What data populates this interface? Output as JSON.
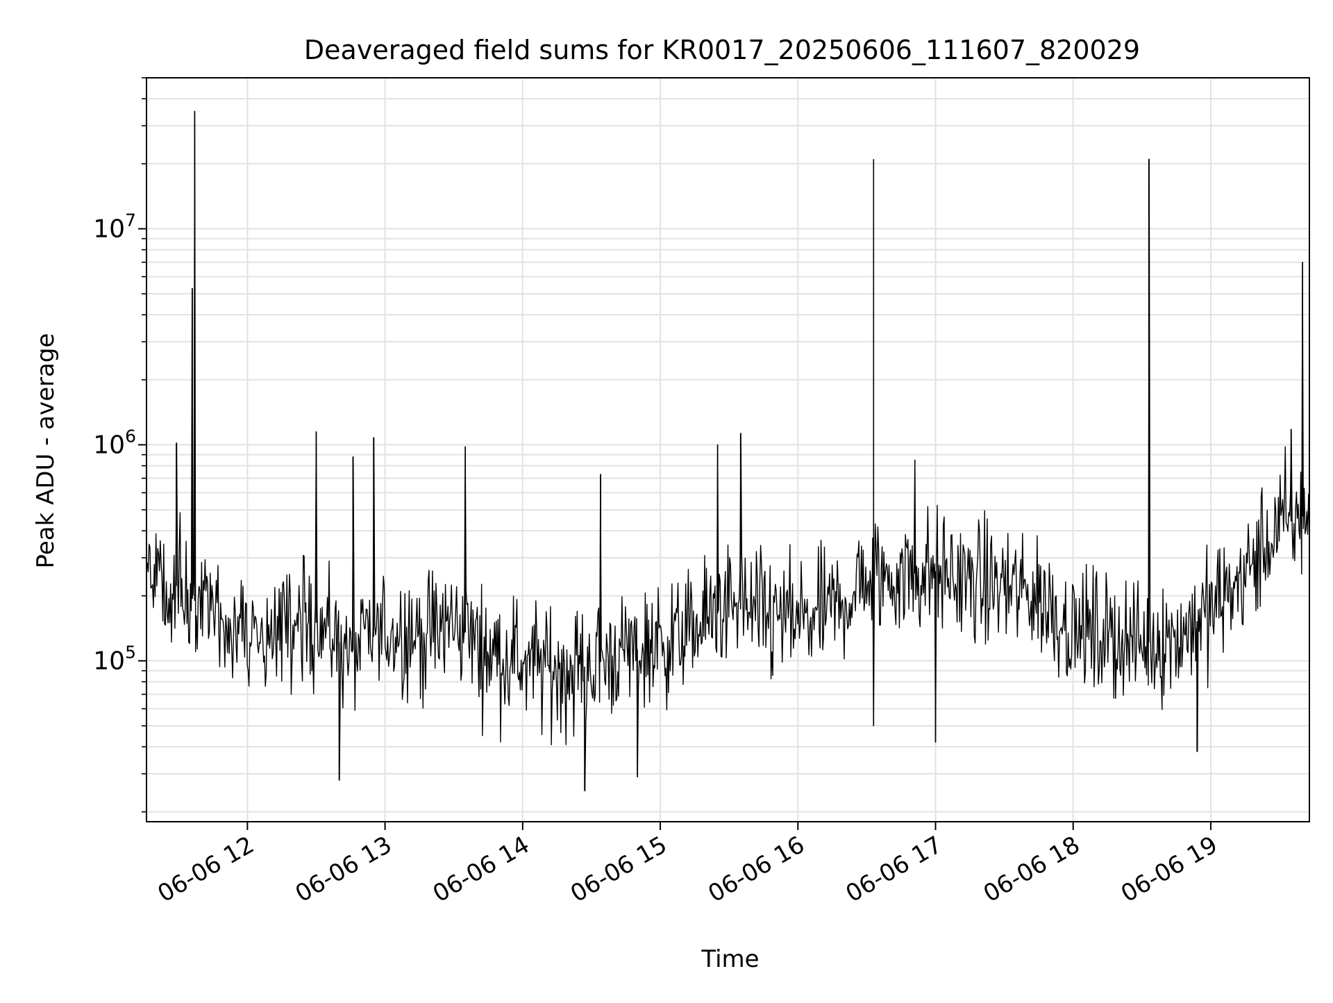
{
  "chart_data": {
    "type": "line",
    "title": "Deaveraged field sums for KR0017_20250606_111607_820029",
    "xlabel": "Time",
    "ylabel": "Peak ADU - average",
    "yscale": "log",
    "ylim": [
      18000,
      50000000
    ],
    "xlim": [
      "2025-06-06 11:16",
      "2025-06-06 19:43"
    ],
    "grid": true,
    "x_ticks": [
      {
        "t": "2025-06-06 12:00",
        "label": "06-06 12"
      },
      {
        "t": "2025-06-06 13:00",
        "label": "06-06 13"
      },
      {
        "t": "2025-06-06 14:00",
        "label": "06-06 14"
      },
      {
        "t": "2025-06-06 15:00",
        "label": "06-06 15"
      },
      {
        "t": "2025-06-06 16:00",
        "label": "06-06 16"
      },
      {
        "t": "2025-06-06 17:00",
        "label": "06-06 17"
      },
      {
        "t": "2025-06-06 18:00",
        "label": "06-06 18"
      },
      {
        "t": "2025-06-06 19:00",
        "label": "06-06 19"
      }
    ],
    "y_ticks": [
      {
        "value": 100000,
        "base": "10",
        "exp": "5"
      },
      {
        "value": 1000000,
        "base": "10",
        "exp": "6"
      },
      {
        "value": 10000000,
        "base": "10",
        "exp": "7"
      }
    ],
    "series": [
      {
        "color": "#000000",
        "baseline": [
          {
            "t": "2025-06-06 11:16",
            "v": 250000
          },
          {
            "t": "2025-06-06 11:30",
            "v": 220000
          },
          {
            "t": "2025-06-06 11:45",
            "v": 160000
          },
          {
            "t": "2025-06-06 12:00",
            "v": 130000
          },
          {
            "t": "2025-06-06 12:15",
            "v": 140000
          },
          {
            "t": "2025-06-06 12:30",
            "v": 150000
          },
          {
            "t": "2025-06-06 12:45",
            "v": 110000
          },
          {
            "t": "2025-06-06 13:00",
            "v": 140000
          },
          {
            "t": "2025-06-06 13:15",
            "v": 130000
          },
          {
            "t": "2025-06-06 13:30",
            "v": 150000
          },
          {
            "t": "2025-06-06 13:45",
            "v": 110000
          },
          {
            "t": "2025-06-06 14:00",
            "v": 100000
          },
          {
            "t": "2025-06-06 14:15",
            "v": 90000
          },
          {
            "t": "2025-06-06 14:30",
            "v": 95000
          },
          {
            "t": "2025-06-06 14:45",
            "v": 110000
          },
          {
            "t": "2025-06-06 15:00",
            "v": 120000
          },
          {
            "t": "2025-06-06 15:15",
            "v": 140000
          },
          {
            "t": "2025-06-06 15:30",
            "v": 180000
          },
          {
            "t": "2025-06-06 15:45",
            "v": 160000
          },
          {
            "t": "2025-06-06 16:00",
            "v": 150000
          },
          {
            "t": "2025-06-06 16:15",
            "v": 170000
          },
          {
            "t": "2025-06-06 16:30",
            "v": 240000
          },
          {
            "t": "2025-06-06 16:45",
            "v": 250000
          },
          {
            "t": "2025-06-06 17:00",
            "v": 260000
          },
          {
            "t": "2025-06-06 17:15",
            "v": 230000
          },
          {
            "t": "2025-06-06 17:30",
            "v": 220000
          },
          {
            "t": "2025-06-06 17:45",
            "v": 200000
          },
          {
            "t": "2025-06-06 18:00",
            "v": 140000
          },
          {
            "t": "2025-06-06 18:15",
            "v": 130000
          },
          {
            "t": "2025-06-06 18:30",
            "v": 120000
          },
          {
            "t": "2025-06-06 18:45",
            "v": 130000
          },
          {
            "t": "2025-06-06 19:00",
            "v": 170000
          },
          {
            "t": "2025-06-06 19:15",
            "v": 250000
          },
          {
            "t": "2025-06-06 19:30",
            "v": 420000
          },
          {
            "t": "2025-06-06 19:43",
            "v": 480000
          }
        ],
        "spikes": [
          {
            "t": "2025-06-06 11:37",
            "v": 35000000
          },
          {
            "t": "2025-06-06 11:36",
            "v": 5300000
          },
          {
            "t": "2025-06-06 16:33",
            "v": 21000000
          },
          {
            "t": "2025-06-06 18:33",
            "v": 21000000
          },
          {
            "t": "2025-06-06 19:40",
            "v": 7000000
          },
          {
            "t": "2025-06-06 11:29",
            "v": 1020000
          },
          {
            "t": "2025-06-06 12:30",
            "v": 1150000
          },
          {
            "t": "2025-06-06 12:46",
            "v": 880000
          },
          {
            "t": "2025-06-06 12:55",
            "v": 1080000
          },
          {
            "t": "2025-06-06 13:35",
            "v": 980000
          },
          {
            "t": "2025-06-06 14:34",
            "v": 730000
          },
          {
            "t": "2025-06-06 15:25",
            "v": 1000000
          },
          {
            "t": "2025-06-06 15:35",
            "v": 1130000
          },
          {
            "t": "2025-06-06 16:51",
            "v": 850000
          },
          {
            "t": "2025-06-06 19:35",
            "v": 1180000
          },
          {
            "t": "2025-06-06 12:40",
            "v": 28000
          },
          {
            "t": "2025-06-06 14:27",
            "v": 25000
          },
          {
            "t": "2025-06-06 14:50",
            "v": 29000
          },
          {
            "t": "2025-06-06 16:33",
            "v": 50000
          },
          {
            "t": "2025-06-06 17:00",
            "v": 42000
          },
          {
            "t": "2025-06-06 18:54",
            "v": 38000
          }
        ]
      }
    ]
  }
}
